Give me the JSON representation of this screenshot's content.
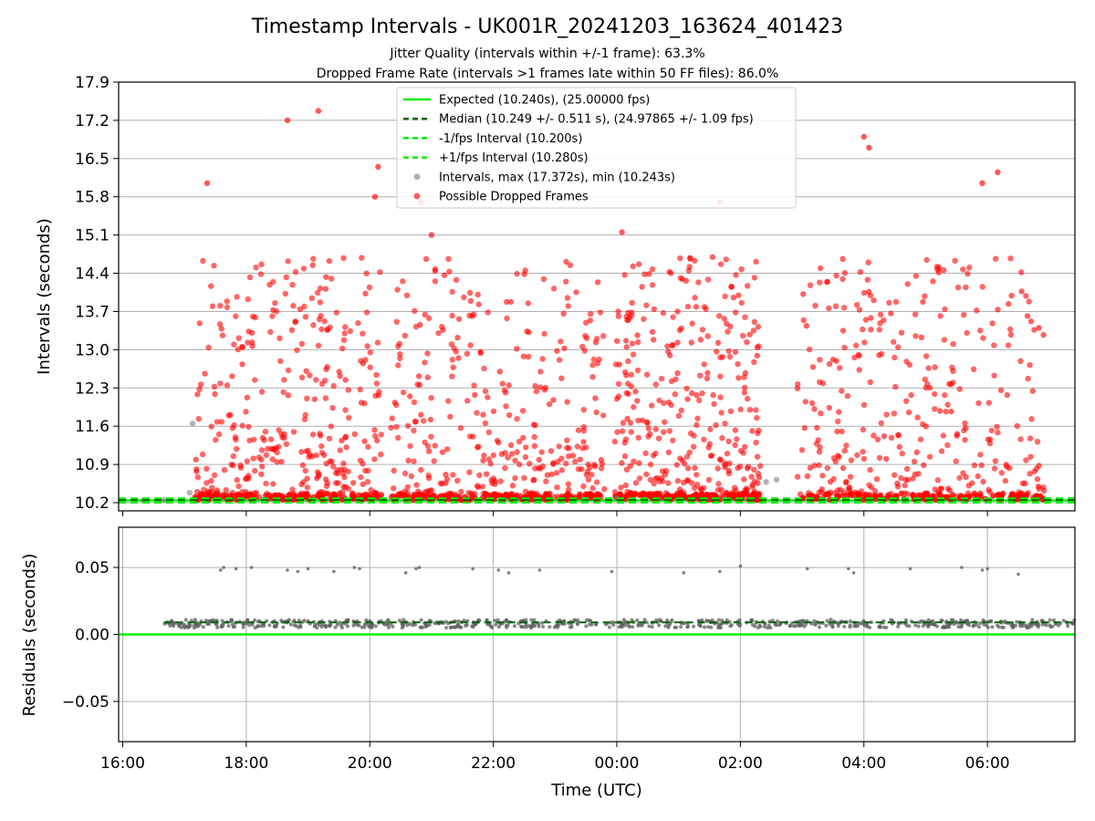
{
  "title": "Timestamp Intervals - UK001R_20241203_163624_401423",
  "subtitle_lines": [
    "Jitter Quality (intervals within +/-1 frame): 63.3%",
    "Dropped Frame Rate (intervals >1 frames late within 50 FF files): 86.0%"
  ],
  "colors": {
    "expected": "#00ee00",
    "median": "#006400",
    "interval_bounds": "#00ee00",
    "intervals": "#808080",
    "dropped": "#ff0000",
    "residuals": "#606060",
    "grid": "#b0b0b0"
  },
  "chart_data": [
    {
      "type": "scatter",
      "ylabel": "Intervals (seconds)",
      "xlabel": "",
      "x_is_time": true,
      "xlim": [
        "2024-12-03 15:56",
        "2024-12-04 07:25"
      ],
      "xticks": [
        "16:00",
        "18:00",
        "20:00",
        "22:00",
        "00:00",
        "02:00",
        "04:00",
        "06:00"
      ],
      "ylim": [
        10.05,
        17.9
      ],
      "yticks": [
        "10.2",
        "10.9",
        "11.6",
        "12.3",
        "13.0",
        "13.7",
        "14.4",
        "15.1",
        "15.8",
        "16.5",
        "17.2",
        "17.9"
      ],
      "grid": true,
      "legend_position": "top-center",
      "legend": [
        "Expected (10.240s), (25.00000 fps)",
        "Median (10.249 +/- 0.511 s), (24.97865 +/- 1.09 fps)",
        "-1/fps Interval (10.200s)",
        "+1/fps Interval (10.280s)",
        "Intervals, max (17.372s), min (10.243s)",
        "Possible Dropped Frames"
      ],
      "reference_lines": {
        "expected": 10.24,
        "median": 10.249,
        "minus_one_frame": 10.2,
        "plus_one_frame": 10.28
      },
      "intervals_sample": [
        {
          "x": "2024-12-03 16:20",
          "y": 10.243
        },
        {
          "x": "2024-12-03 16:40",
          "y": 10.245
        },
        {
          "x": "2024-12-03 17:08",
          "y": 11.65
        },
        {
          "x": "2024-12-03 17:05",
          "y": 10.38
        },
        {
          "x": "2024-12-04 02:25",
          "y": 10.58
        },
        {
          "x": "2024-12-04 02:35",
          "y": 10.62
        },
        {
          "x": "2024-12-04 00:00",
          "y": 10.28
        }
      ],
      "dropped_frames_sample": [
        {
          "x": "2024-12-03 17:22",
          "y": 16.05
        },
        {
          "x": "2024-12-03 18:40",
          "y": 17.2
        },
        {
          "x": "2024-12-03 19:10",
          "y": 17.372
        },
        {
          "x": "2024-12-03 20:08",
          "y": 16.35
        },
        {
          "x": "2024-12-03 20:05",
          "y": 15.8
        },
        {
          "x": "2024-12-03 20:50",
          "y": 15.7
        },
        {
          "x": "2024-12-03 21:00",
          "y": 15.1
        },
        {
          "x": "2024-12-04 00:05",
          "y": 15.15
        },
        {
          "x": "2024-12-04 01:40",
          "y": 15.7
        },
        {
          "x": "2024-12-04 04:00",
          "y": 16.9
        },
        {
          "x": "2024-12-04 04:05",
          "y": 16.7
        },
        {
          "x": "2024-12-04 05:55",
          "y": 16.05
        },
        {
          "x": "2024-12-04 06:10",
          "y": 16.25
        },
        {
          "x": "2024-12-04 06:50",
          "y": 13.4
        }
      ],
      "observation_windows": [
        [
          "2024-12-03 17:10",
          "2024-12-03 20:12"
        ],
        [
          "2024-12-03 20:20",
          "2024-12-03 23:48"
        ],
        [
          "2024-12-03 23:58",
          "2024-12-04 02:20"
        ],
        [
          "2024-12-04 02:55",
          "2024-12-04 06:55"
        ]
      ]
    },
    {
      "type": "scatter",
      "ylabel": "Residuals (seconds)",
      "xlabel": "Time (UTC)",
      "x_is_time": true,
      "xlim": [
        "2024-12-03 15:56",
        "2024-12-04 07:25"
      ],
      "xticks": [
        "16:00",
        "18:00",
        "20:00",
        "22:00",
        "00:00",
        "02:00",
        "04:00",
        "06:00"
      ],
      "ylim": [
        -0.08,
        0.08
      ],
      "yticks": [
        "0.05",
        "0.00",
        "−0.05"
      ],
      "grid": true,
      "reference_lines": {
        "zero": 0.0,
        "median_residual": 0.009
      },
      "residual_cluster_center": 0.008,
      "outliers": [
        {
          "x": "2024-12-03 17:35",
          "y": 0.048
        },
        {
          "x": "2024-12-03 17:38",
          "y": 0.05
        },
        {
          "x": "2024-12-03 17:50",
          "y": 0.049
        },
        {
          "x": "2024-12-03 18:05",
          "y": 0.05
        },
        {
          "x": "2024-12-03 18:40",
          "y": 0.048
        },
        {
          "x": "2024-12-03 18:50",
          "y": 0.047
        },
        {
          "x": "2024-12-03 19:00",
          "y": 0.049
        },
        {
          "x": "2024-12-03 19:25",
          "y": 0.047
        },
        {
          "x": "2024-12-03 19:45",
          "y": 0.05
        },
        {
          "x": "2024-12-03 19:50",
          "y": 0.049
        },
        {
          "x": "2024-12-03 20:35",
          "y": 0.046
        },
        {
          "x": "2024-12-03 20:45",
          "y": 0.049
        },
        {
          "x": "2024-12-03 20:48",
          "y": 0.05
        },
        {
          "x": "2024-12-03 21:40",
          "y": 0.049
        },
        {
          "x": "2024-12-03 22:05",
          "y": 0.048
        },
        {
          "x": "2024-12-03 22:15",
          "y": 0.046
        },
        {
          "x": "2024-12-03 22:45",
          "y": 0.048
        },
        {
          "x": "2024-12-03 23:55",
          "y": 0.047
        },
        {
          "x": "2024-12-04 01:05",
          "y": 0.046
        },
        {
          "x": "2024-12-04 01:40",
          "y": 0.047
        },
        {
          "x": "2024-12-04 02:00",
          "y": 0.051
        },
        {
          "x": "2024-12-04 03:05",
          "y": 0.049
        },
        {
          "x": "2024-12-04 03:45",
          "y": 0.049
        },
        {
          "x": "2024-12-04 03:50",
          "y": 0.046
        },
        {
          "x": "2024-12-04 04:45",
          "y": 0.049
        },
        {
          "x": "2024-12-04 05:35",
          "y": 0.05
        },
        {
          "x": "2024-12-04 05:55",
          "y": 0.048
        },
        {
          "x": "2024-12-04 06:00",
          "y": 0.049
        },
        {
          "x": "2024-12-04 06:30",
          "y": 0.045
        }
      ]
    }
  ]
}
